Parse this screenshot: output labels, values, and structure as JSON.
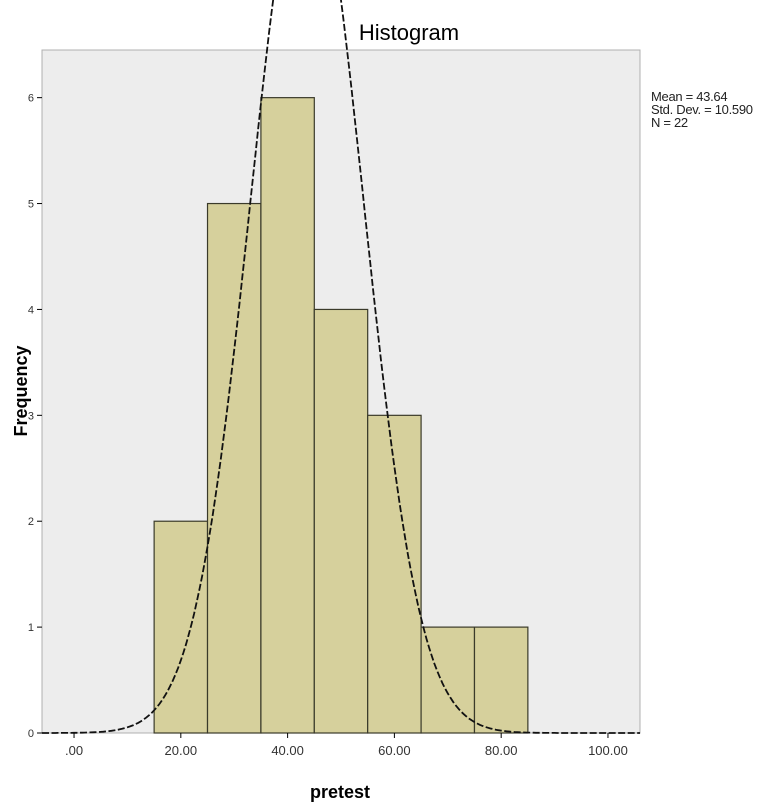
{
  "chart_data": {
    "type": "bar",
    "subtype": "histogram",
    "title": "Histogram",
    "xlabel": "pretest",
    "ylabel": "Frequency",
    "bins": [
      {
        "from": 15,
        "to": 25,
        "count": 2
      },
      {
        "from": 25,
        "to": 35,
        "count": 5
      },
      {
        "from": 35,
        "to": 45,
        "count": 6
      },
      {
        "from": 45,
        "to": 55,
        "count": 4
      },
      {
        "from": 55,
        "to": 65,
        "count": 3
      },
      {
        "from": 65,
        "to": 75,
        "count": 1
      },
      {
        "from": 75,
        "to": 85,
        "count": 1
      }
    ],
    "normal_curve": {
      "mean": 43.64,
      "sd": 10.59,
      "n": 22,
      "bin_width": 10
    },
    "xlim": [
      -6,
      106
    ],
    "ylim": [
      0,
      6.45
    ],
    "x_ticks": [
      {
        "value": 0,
        "label": ".00"
      },
      {
        "value": 20,
        "label": "20.00"
      },
      {
        "value": 40,
        "label": "40.00"
      },
      {
        "value": 60,
        "label": "60.00"
      },
      {
        "value": 80,
        "label": "80.00"
      },
      {
        "value": 100,
        "label": "100.00"
      }
    ],
    "y_ticks": [
      0,
      1,
      2,
      3,
      4,
      5,
      6
    ],
    "legend": {
      "mean": "Mean = 43.64",
      "sd": "Std. Dev. = 10.590",
      "n": "N = 22"
    },
    "colors": {
      "bar_fill": "#d6d09c",
      "bar_stroke": "#3a3a2a",
      "plot_bg": "#ededed",
      "curve": "#111111"
    }
  }
}
